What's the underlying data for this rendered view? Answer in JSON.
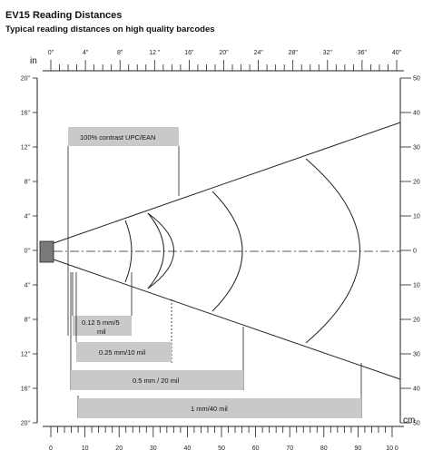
{
  "header": {
    "title": "EV15 Reading Distances",
    "subtitle": "Typical reading distances on high quality barcodes"
  },
  "scales": {
    "inch_unit": "in",
    "cm_unit": "cm",
    "top_inch_labels": [
      "0\"",
      "4\"",
      "8\"",
      "12 \"",
      "16\"",
      "20\"",
      "24\"",
      "28\"",
      "32\"",
      "36\"",
      "40\""
    ],
    "bottom_cm_labels": [
      "0",
      "10",
      "20",
      "30",
      "40",
      "50",
      "60",
      "70",
      "80",
      "90",
      "10 0"
    ],
    "left_labels": [
      "20\"",
      "16\"",
      "12\"",
      "8\"",
      "4\"",
      "0\"",
      "4\"",
      "8\"",
      "12\"",
      "16\"",
      "20\""
    ],
    "right_labels": [
      "50",
      "40",
      "30",
      "20",
      "10",
      "0",
      "10",
      "20",
      "30",
      "40",
      "50"
    ]
  },
  "boxes": {
    "contrast": "100% contrast UPC/EAN",
    "r1_line1": "0.12 5 mm/5",
    "r1_line2": "mil",
    "r2": "0.25 mm/10 mil",
    "r3": "0.5 mm / 20 mil",
    "r4": "1 mm/40 mil"
  },
  "colors": {
    "box_fill": "#c9c9c9",
    "device_fill": "#7a7a7a",
    "line": "#222222"
  }
}
